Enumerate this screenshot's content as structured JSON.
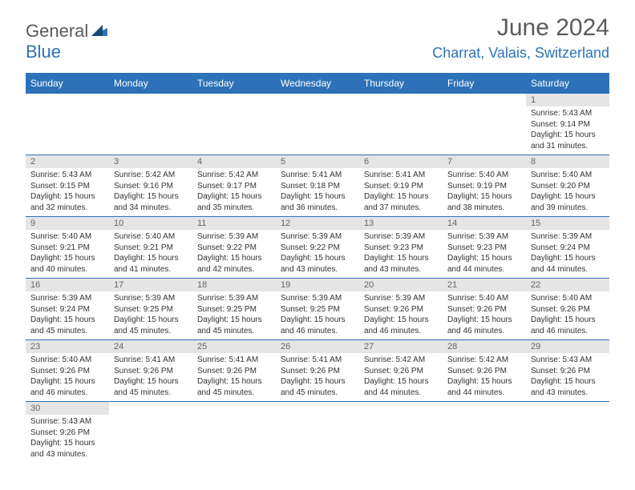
{
  "logo": {
    "part1": "General",
    "part2": "Blue",
    "color_text": "#5a5a5a",
    "color_accent": "#2d72b8"
  },
  "title": {
    "month": "June 2024",
    "location": "Charrat, Valais, Switzerland"
  },
  "colors": {
    "header_bg": "#2d72b8",
    "header_fg": "#ffffff",
    "daynum_bg": "#e5e5e5",
    "border": "#2d72b8",
    "text": "#333333"
  },
  "day_names": [
    "Sunday",
    "Monday",
    "Tuesday",
    "Wednesday",
    "Thursday",
    "Friday",
    "Saturday"
  ],
  "calendar": {
    "first_day_index": 6,
    "days": [
      {
        "n": 1,
        "sunrise": "5:43 AM",
        "sunset": "9:14 PM",
        "daylight": "15 hours and 31 minutes."
      },
      {
        "n": 2,
        "sunrise": "5:43 AM",
        "sunset": "9:15 PM",
        "daylight": "15 hours and 32 minutes."
      },
      {
        "n": 3,
        "sunrise": "5:42 AM",
        "sunset": "9:16 PM",
        "daylight": "15 hours and 34 minutes."
      },
      {
        "n": 4,
        "sunrise": "5:42 AM",
        "sunset": "9:17 PM",
        "daylight": "15 hours and 35 minutes."
      },
      {
        "n": 5,
        "sunrise": "5:41 AM",
        "sunset": "9:18 PM",
        "daylight": "15 hours and 36 minutes."
      },
      {
        "n": 6,
        "sunrise": "5:41 AM",
        "sunset": "9:19 PM",
        "daylight": "15 hours and 37 minutes."
      },
      {
        "n": 7,
        "sunrise": "5:40 AM",
        "sunset": "9:19 PM",
        "daylight": "15 hours and 38 minutes."
      },
      {
        "n": 8,
        "sunrise": "5:40 AM",
        "sunset": "9:20 PM",
        "daylight": "15 hours and 39 minutes."
      },
      {
        "n": 9,
        "sunrise": "5:40 AM",
        "sunset": "9:21 PM",
        "daylight": "15 hours and 40 minutes."
      },
      {
        "n": 10,
        "sunrise": "5:40 AM",
        "sunset": "9:21 PM",
        "daylight": "15 hours and 41 minutes."
      },
      {
        "n": 11,
        "sunrise": "5:39 AM",
        "sunset": "9:22 PM",
        "daylight": "15 hours and 42 minutes."
      },
      {
        "n": 12,
        "sunrise": "5:39 AM",
        "sunset": "9:22 PM",
        "daylight": "15 hours and 43 minutes."
      },
      {
        "n": 13,
        "sunrise": "5:39 AM",
        "sunset": "9:23 PM",
        "daylight": "15 hours and 43 minutes."
      },
      {
        "n": 14,
        "sunrise": "5:39 AM",
        "sunset": "9:23 PM",
        "daylight": "15 hours and 44 minutes."
      },
      {
        "n": 15,
        "sunrise": "5:39 AM",
        "sunset": "9:24 PM",
        "daylight": "15 hours and 44 minutes."
      },
      {
        "n": 16,
        "sunrise": "5:39 AM",
        "sunset": "9:24 PM",
        "daylight": "15 hours and 45 minutes."
      },
      {
        "n": 17,
        "sunrise": "5:39 AM",
        "sunset": "9:25 PM",
        "daylight": "15 hours and 45 minutes."
      },
      {
        "n": 18,
        "sunrise": "5:39 AM",
        "sunset": "9:25 PM",
        "daylight": "15 hours and 45 minutes."
      },
      {
        "n": 19,
        "sunrise": "5:39 AM",
        "sunset": "9:25 PM",
        "daylight": "15 hours and 46 minutes."
      },
      {
        "n": 20,
        "sunrise": "5:39 AM",
        "sunset": "9:26 PM",
        "daylight": "15 hours and 46 minutes."
      },
      {
        "n": 21,
        "sunrise": "5:40 AM",
        "sunset": "9:26 PM",
        "daylight": "15 hours and 46 minutes."
      },
      {
        "n": 22,
        "sunrise": "5:40 AM",
        "sunset": "9:26 PM",
        "daylight": "15 hours and 46 minutes."
      },
      {
        "n": 23,
        "sunrise": "5:40 AM",
        "sunset": "9:26 PM",
        "daylight": "15 hours and 46 minutes."
      },
      {
        "n": 24,
        "sunrise": "5:41 AM",
        "sunset": "9:26 PM",
        "daylight": "15 hours and 45 minutes."
      },
      {
        "n": 25,
        "sunrise": "5:41 AM",
        "sunset": "9:26 PM",
        "daylight": "15 hours and 45 minutes."
      },
      {
        "n": 26,
        "sunrise": "5:41 AM",
        "sunset": "9:26 PM",
        "daylight": "15 hours and 45 minutes."
      },
      {
        "n": 27,
        "sunrise": "5:42 AM",
        "sunset": "9:26 PM",
        "daylight": "15 hours and 44 minutes."
      },
      {
        "n": 28,
        "sunrise": "5:42 AM",
        "sunset": "9:26 PM",
        "daylight": "15 hours and 44 minutes."
      },
      {
        "n": 29,
        "sunrise": "5:43 AM",
        "sunset": "9:26 PM",
        "daylight": "15 hours and 43 minutes."
      },
      {
        "n": 30,
        "sunrise": "5:43 AM",
        "sunset": "9:26 PM",
        "daylight": "15 hours and 43 minutes."
      }
    ]
  },
  "labels": {
    "sunrise": "Sunrise:",
    "sunset": "Sunset:",
    "daylight": "Daylight:"
  }
}
